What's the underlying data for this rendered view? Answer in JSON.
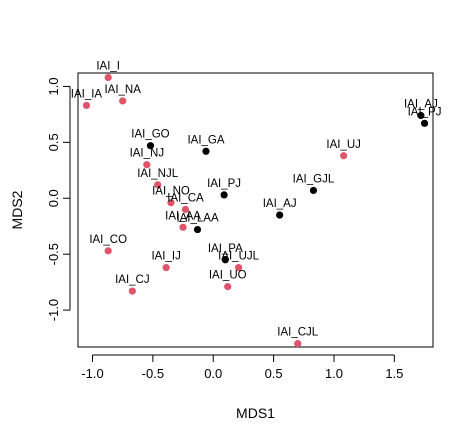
{
  "chart_data": {
    "type": "scatter",
    "title": "",
    "xlabel": "MDS1",
    "ylabel": "MDS2",
    "xlim": [
      -1.12,
      1.82
    ],
    "ylim": [
      -1.33,
      1.12
    ],
    "xticks": [
      "-1.0",
      "-0.5",
      "0.0",
      "0.5",
      "1.0",
      "1.5"
    ],
    "xtick_values": [
      -1.0,
      -0.5,
      0.0,
      0.5,
      1.0,
      1.5
    ],
    "yticks": [
      "-1.0",
      "-0.5",
      "0.0",
      "0.5",
      "1.0"
    ],
    "ytick_values": [
      -1.0,
      -0.5,
      0.0,
      0.5,
      1.0
    ],
    "grid": false,
    "colors": {
      "red": "#DF536B",
      "black": "#000000"
    },
    "points": [
      {
        "label": "IAI_IA",
        "x": -1.05,
        "y": 0.83,
        "color": "red"
      },
      {
        "label": "IAI_I",
        "x": -0.87,
        "y": 1.08,
        "color": "red"
      },
      {
        "label": "IAI_NA",
        "x": -0.75,
        "y": 0.87,
        "color": "red"
      },
      {
        "label": "IAI_GO",
        "x": -0.52,
        "y": 0.47,
        "color": "black"
      },
      {
        "label": "IAI_NJ",
        "x": -0.55,
        "y": 0.3,
        "color": "red"
      },
      {
        "label": "IAI_NJL",
        "x": -0.46,
        "y": 0.12,
        "color": "red"
      },
      {
        "label": "IAI_NO",
        "x": -0.35,
        "y": -0.04,
        "color": "red"
      },
      {
        "label": "IAI_CA",
        "x": -0.23,
        "y": -0.1,
        "color": "red"
      },
      {
        "label": "IAI_AA",
        "x": -0.25,
        "y": -0.26,
        "color": "red"
      },
      {
        "label": "IAI_LAA",
        "x": -0.13,
        "y": -0.28,
        "color": "black"
      },
      {
        "label": "IAI_GA",
        "x": -0.06,
        "y": 0.42,
        "color": "black"
      },
      {
        "label": "IAI_PJ",
        "x": 0.09,
        "y": 0.03,
        "color": "black"
      },
      {
        "label": "IAI_PA",
        "x": 0.1,
        "y": -0.55,
        "color": "black"
      },
      {
        "label": "IAI_UJL",
        "x": 0.21,
        "y": -0.62,
        "color": "red"
      },
      {
        "label": "IAI_UO",
        "x": 0.12,
        "y": -0.79,
        "color": "red"
      },
      {
        "label": "IAI_CO",
        "x": -0.87,
        "y": -0.47,
        "color": "red"
      },
      {
        "label": "IAI_IJ",
        "x": -0.39,
        "y": -0.62,
        "color": "red"
      },
      {
        "label": "IAI_CJ",
        "x": -0.67,
        "y": -0.83,
        "color": "red"
      },
      {
        "label": "IAI_CJL",
        "x": 0.7,
        "y": -1.3,
        "color": "red"
      },
      {
        "label": "IAI_AJ",
        "x": 0.55,
        "y": -0.15,
        "color": "black"
      },
      {
        "label": "IAI_GJL",
        "x": 0.83,
        "y": 0.07,
        "color": "black"
      },
      {
        "label": "IAI_UJ",
        "x": 1.08,
        "y": 0.38,
        "color": "red"
      },
      {
        "label": "IAI_AJ",
        "x": 1.72,
        "y": 0.74,
        "color": "black"
      },
      {
        "label": "IAI_PJ",
        "x": 1.75,
        "y": 0.67,
        "color": "black"
      }
    ]
  }
}
